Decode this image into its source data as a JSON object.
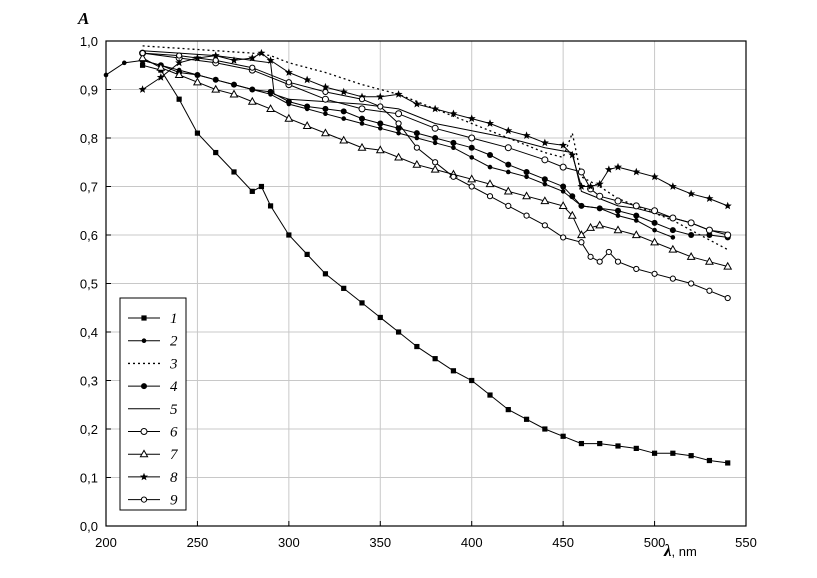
{
  "chart_data": {
    "type": "line",
    "title": "",
    "xlabel": "λ",
    "xunit": ", nm",
    "ylabel": "A",
    "xlim": [
      200,
      550
    ],
    "ylim": [
      0.0,
      1.0
    ],
    "xticks": [
      "200",
      "250",
      "300",
      "350",
      "400",
      "450",
      "500",
      "550"
    ],
    "yticks": [
      "0,0",
      "0,1",
      "0,2",
      "0,3",
      "0,4",
      "0,5",
      "0,6",
      "0,7",
      "0,8",
      "0,9",
      "1,0"
    ],
    "grid": true,
    "legend_position": "bottom-left",
    "series": [
      {
        "name": "1",
        "marker": "square",
        "dash": "",
        "points": [
          [
            220,
            0.95
          ],
          [
            230,
            0.94
          ],
          [
            240,
            0.88
          ],
          [
            250,
            0.81
          ],
          [
            260,
            0.77
          ],
          [
            270,
            0.73
          ],
          [
            280,
            0.69
          ],
          [
            285,
            0.7
          ],
          [
            290,
            0.66
          ],
          [
            300,
            0.6
          ],
          [
            310,
            0.56
          ],
          [
            320,
            0.52
          ],
          [
            330,
            0.49
          ],
          [
            340,
            0.46
          ],
          [
            350,
            0.43
          ],
          [
            360,
            0.4
          ],
          [
            370,
            0.37
          ],
          [
            380,
            0.345
          ],
          [
            390,
            0.32
          ],
          [
            400,
            0.3
          ],
          [
            410,
            0.27
          ],
          [
            420,
            0.24
          ],
          [
            430,
            0.22
          ],
          [
            440,
            0.2
          ],
          [
            450,
            0.185
          ],
          [
            460,
            0.17
          ],
          [
            470,
            0.17
          ],
          [
            480,
            0.165
          ],
          [
            490,
            0.16
          ],
          [
            500,
            0.15
          ],
          [
            510,
            0.15
          ],
          [
            520,
            0.145
          ],
          [
            530,
            0.135
          ],
          [
            540,
            0.13
          ]
        ]
      },
      {
        "name": "2",
        "marker": "dot-small",
        "dash": "",
        "points": [
          [
            200,
            0.93
          ],
          [
            210,
            0.955
          ],
          [
            220,
            0.96
          ],
          [
            230,
            0.95
          ],
          [
            240,
            0.94
          ],
          [
            250,
            0.93
          ],
          [
            260,
            0.92
          ],
          [
            270,
            0.91
          ],
          [
            280,
            0.9
          ],
          [
            290,
            0.89
          ],
          [
            300,
            0.87
          ],
          [
            310,
            0.86
          ],
          [
            320,
            0.85
          ],
          [
            330,
            0.84
          ],
          [
            340,
            0.83
          ],
          [
            350,
            0.82
          ],
          [
            360,
            0.81
          ],
          [
            370,
            0.8
          ],
          [
            380,
            0.79
          ],
          [
            390,
            0.78
          ],
          [
            400,
            0.76
          ],
          [
            410,
            0.74
          ],
          [
            420,
            0.73
          ],
          [
            430,
            0.72
          ],
          [
            440,
            0.705
          ],
          [
            450,
            0.69
          ],
          [
            460,
            0.66
          ],
          [
            470,
            0.655
          ],
          [
            480,
            0.64
          ],
          [
            490,
            0.63
          ],
          [
            500,
            0.61
          ],
          [
            510,
            0.595
          ]
        ]
      },
      {
        "name": "3",
        "marker": "none",
        "dash": "2,3",
        "points": [
          [
            220,
            0.99
          ],
          [
            240,
            0.985
          ],
          [
            260,
            0.98
          ],
          [
            280,
            0.975
          ],
          [
            290,
            0.97
          ],
          [
            300,
            0.955
          ],
          [
            320,
            0.935
          ],
          [
            340,
            0.91
          ],
          [
            360,
            0.89
          ],
          [
            380,
            0.86
          ],
          [
            400,
            0.83
          ],
          [
            420,
            0.8
          ],
          [
            440,
            0.77
          ],
          [
            450,
            0.76
          ],
          [
            455,
            0.81
          ],
          [
            460,
            0.72
          ],
          [
            470,
            0.7
          ],
          [
            480,
            0.675
          ],
          [
            490,
            0.66
          ],
          [
            500,
            0.645
          ],
          [
            510,
            0.63
          ],
          [
            520,
            0.61
          ],
          [
            530,
            0.59
          ],
          [
            540,
            0.57
          ]
        ]
      },
      {
        "name": "4",
        "marker": "dot",
        "dash": "",
        "points": [
          [
            220,
            0.96
          ],
          [
            230,
            0.95
          ],
          [
            240,
            0.935
          ],
          [
            250,
            0.93
          ],
          [
            260,
            0.92
          ],
          [
            270,
            0.91
          ],
          [
            280,
            0.9
          ],
          [
            290,
            0.895
          ],
          [
            300,
            0.875
          ],
          [
            310,
            0.865
          ],
          [
            320,
            0.86
          ],
          [
            330,
            0.855
          ],
          [
            340,
            0.84
          ],
          [
            350,
            0.83
          ],
          [
            360,
            0.82
          ],
          [
            370,
            0.81
          ],
          [
            380,
            0.8
          ],
          [
            390,
            0.79
          ],
          [
            400,
            0.78
          ],
          [
            410,
            0.765
          ],
          [
            420,
            0.745
          ],
          [
            430,
            0.73
          ],
          [
            440,
            0.715
          ],
          [
            450,
            0.7
          ],
          [
            455,
            0.68
          ],
          [
            460,
            0.66
          ],
          [
            470,
            0.655
          ],
          [
            480,
            0.65
          ],
          [
            490,
            0.64
          ],
          [
            500,
            0.625
          ],
          [
            510,
            0.61
          ],
          [
            520,
            0.6
          ],
          [
            530,
            0.6
          ],
          [
            540,
            0.595
          ]
        ]
      },
      {
        "name": "5",
        "marker": "none",
        "dash": "",
        "points": [
          [
            220,
            0.98
          ],
          [
            240,
            0.975
          ],
          [
            260,
            0.97
          ],
          [
            280,
            0.96
          ],
          [
            290,
            0.955
          ],
          [
            292,
            0.89
          ],
          [
            300,
            0.88
          ],
          [
            320,
            0.875
          ],
          [
            340,
            0.87
          ],
          [
            360,
            0.86
          ],
          [
            380,
            0.83
          ],
          [
            400,
            0.815
          ],
          [
            420,
            0.8
          ],
          [
            440,
            0.78
          ],
          [
            455,
            0.77
          ],
          [
            460,
            0.69
          ],
          [
            470,
            0.675
          ],
          [
            480,
            0.66
          ],
          [
            490,
            0.655
          ],
          [
            500,
            0.645
          ],
          [
            510,
            0.635
          ],
          [
            520,
            0.625
          ],
          [
            530,
            0.61
          ],
          [
            540,
            0.605
          ]
        ]
      },
      {
        "name": "6",
        "marker": "circle",
        "dash": "",
        "points": [
          [
            220,
            0.975
          ],
          [
            240,
            0.965
          ],
          [
            260,
            0.955
          ],
          [
            280,
            0.94
          ],
          [
            300,
            0.91
          ],
          [
            320,
            0.88
          ],
          [
            340,
            0.86
          ],
          [
            360,
            0.85
          ],
          [
            380,
            0.82
          ],
          [
            400,
            0.8
          ],
          [
            420,
            0.78
          ],
          [
            440,
            0.755
          ],
          [
            450,
            0.74
          ],
          [
            460,
            0.73
          ],
          [
            465,
            0.695
          ],
          [
            470,
            0.68
          ],
          [
            480,
            0.67
          ],
          [
            490,
            0.66
          ],
          [
            500,
            0.65
          ],
          [
            510,
            0.635
          ],
          [
            520,
            0.625
          ],
          [
            530,
            0.61
          ],
          [
            540,
            0.6
          ]
        ]
      },
      {
        "name": "7",
        "marker": "triangle",
        "dash": "",
        "points": [
          [
            220,
            0.965
          ],
          [
            230,
            0.945
          ],
          [
            240,
            0.93
          ],
          [
            250,
            0.915
          ],
          [
            260,
            0.9
          ],
          [
            270,
            0.89
          ],
          [
            280,
            0.875
          ],
          [
            290,
            0.86
          ],
          [
            300,
            0.84
          ],
          [
            310,
            0.825
          ],
          [
            320,
            0.81
          ],
          [
            330,
            0.795
          ],
          [
            340,
            0.78
          ],
          [
            350,
            0.775
          ],
          [
            360,
            0.76
          ],
          [
            370,
            0.745
          ],
          [
            380,
            0.735
          ],
          [
            390,
            0.725
          ],
          [
            400,
            0.715
          ],
          [
            410,
            0.705
          ],
          [
            420,
            0.69
          ],
          [
            430,
            0.68
          ],
          [
            440,
            0.67
          ],
          [
            450,
            0.66
          ],
          [
            455,
            0.64
          ],
          [
            460,
            0.6
          ],
          [
            465,
            0.615
          ],
          [
            470,
            0.62
          ],
          [
            480,
            0.61
          ],
          [
            490,
            0.6
          ],
          [
            500,
            0.585
          ],
          [
            510,
            0.57
          ],
          [
            520,
            0.555
          ],
          [
            530,
            0.545
          ],
          [
            540,
            0.535
          ]
        ]
      },
      {
        "name": "8",
        "marker": "star",
        "dash": "",
        "points": [
          [
            220,
            0.9
          ],
          [
            230,
            0.925
          ],
          [
            240,
            0.955
          ],
          [
            250,
            0.965
          ],
          [
            260,
            0.97
          ],
          [
            270,
            0.96
          ],
          [
            280,
            0.965
          ],
          [
            285,
            0.975
          ],
          [
            290,
            0.96
          ],
          [
            300,
            0.935
          ],
          [
            310,
            0.92
          ],
          [
            320,
            0.905
          ],
          [
            330,
            0.895
          ],
          [
            340,
            0.885
          ],
          [
            350,
            0.885
          ],
          [
            360,
            0.89
          ],
          [
            370,
            0.87
          ],
          [
            380,
            0.86
          ],
          [
            390,
            0.85
          ],
          [
            400,
            0.84
          ],
          [
            410,
            0.83
          ],
          [
            420,
            0.815
          ],
          [
            430,
            0.805
          ],
          [
            440,
            0.79
          ],
          [
            450,
            0.785
          ],
          [
            455,
            0.765
          ],
          [
            460,
            0.7
          ],
          [
            465,
            0.7
          ],
          [
            470,
            0.705
          ],
          [
            475,
            0.735
          ],
          [
            480,
            0.74
          ],
          [
            490,
            0.73
          ],
          [
            500,
            0.72
          ],
          [
            510,
            0.7
          ],
          [
            520,
            0.685
          ],
          [
            530,
            0.675
          ],
          [
            540,
            0.66
          ]
        ]
      },
      {
        "name": "9",
        "marker": "circle-small",
        "dash": "",
        "points": [
          [
            220,
            0.975
          ],
          [
            240,
            0.97
          ],
          [
            260,
            0.96
          ],
          [
            280,
            0.945
          ],
          [
            300,
            0.915
          ],
          [
            320,
            0.895
          ],
          [
            340,
            0.88
          ],
          [
            350,
            0.865
          ],
          [
            360,
            0.83
          ],
          [
            370,
            0.78
          ],
          [
            380,
            0.75
          ],
          [
            390,
            0.72
          ],
          [
            400,
            0.7
          ],
          [
            410,
            0.68
          ],
          [
            420,
            0.66
          ],
          [
            430,
            0.64
          ],
          [
            440,
            0.62
          ],
          [
            450,
            0.595
          ],
          [
            460,
            0.585
          ],
          [
            465,
            0.555
          ],
          [
            470,
            0.545
          ],
          [
            475,
            0.565
          ],
          [
            480,
            0.545
          ],
          [
            490,
            0.53
          ],
          [
            500,
            0.52
          ],
          [
            510,
            0.51
          ],
          [
            520,
            0.5
          ],
          [
            530,
            0.485
          ],
          [
            540,
            0.47
          ]
        ]
      }
    ]
  }
}
